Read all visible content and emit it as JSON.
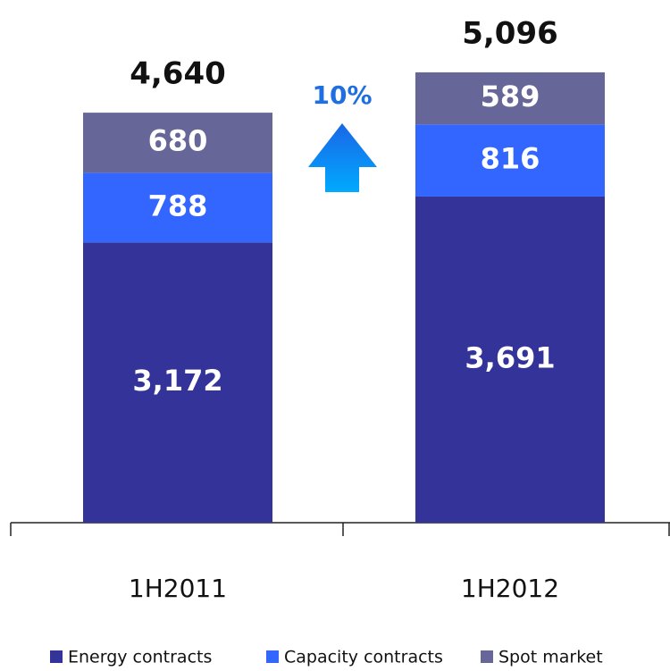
{
  "chart_data": {
    "type": "stacked-bar",
    "categories": [
      "1H2011",
      "1H2012"
    ],
    "series": [
      {
        "name": "Energy contracts",
        "color": "#333399",
        "values": [
          3172,
          3691
        ],
        "value_labels": [
          "3,172",
          "3,691"
        ]
      },
      {
        "name": "Capacity contracts",
        "color": "#3366ff",
        "values": [
          788,
          816
        ],
        "value_labels": [
          "788",
          "816"
        ]
      },
      {
        "name": "Spot market",
        "color": "#666699",
        "values": [
          680,
          589
        ],
        "value_labels": [
          "680",
          "589"
        ]
      }
    ],
    "totals": [
      4640,
      5096
    ],
    "total_labels": [
      "4,640",
      "5,096"
    ],
    "annotations": [
      "10%"
    ]
  }
}
